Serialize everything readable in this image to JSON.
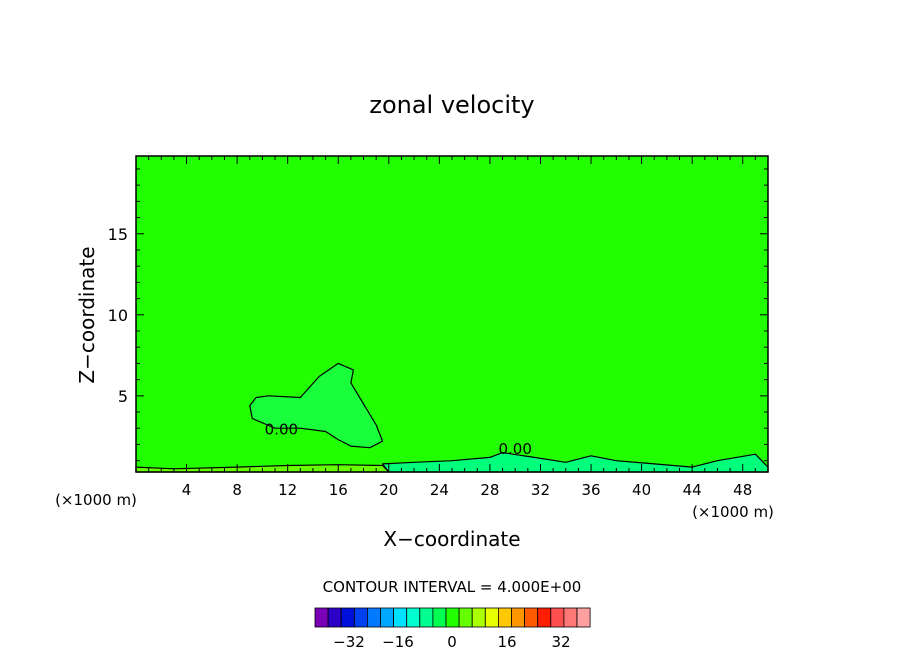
{
  "chart_data": {
    "type": "heatmap",
    "title": "zonal velocity",
    "xlabel": "X−coordinate",
    "ylabel": "Z−coordinate",
    "x_unit_left": "(×1000 m)",
    "x_unit_right": "(×1000 m)",
    "xlim": [
      0,
      50
    ],
    "ylim": [
      0.3,
      19.8
    ],
    "x_ticks": [
      4,
      8,
      12,
      16,
      20,
      24,
      28,
      32,
      36,
      40,
      44,
      48
    ],
    "y_ticks": [
      5,
      10,
      15
    ],
    "background_color": "#22ff00",
    "contour_labels": [
      {
        "text": "0.00",
        "x": 11.5,
        "y": 2.6
      },
      {
        "text": "0.00",
        "x": 30.0,
        "y": 1.4
      }
    ],
    "regions": [
      {
        "name": "low-speed-anomaly",
        "color": "#19ff3c",
        "outline": [
          [
            9.5,
            4.9
          ],
          [
            10.5,
            5.0
          ],
          [
            13.0,
            4.9
          ],
          [
            14.5,
            6.2
          ],
          [
            16.0,
            7.0
          ],
          [
            17.2,
            6.6
          ],
          [
            17.0,
            5.8
          ],
          [
            18.0,
            4.5
          ],
          [
            19.0,
            3.2
          ],
          [
            19.5,
            2.2
          ],
          [
            18.5,
            1.8
          ],
          [
            17.0,
            1.9
          ],
          [
            16.0,
            2.3
          ],
          [
            15.0,
            2.8
          ],
          [
            13.0,
            3.0
          ],
          [
            11.0,
            3.0
          ],
          [
            9.2,
            3.6
          ],
          [
            9.0,
            4.4
          ]
        ]
      },
      {
        "name": "surface-layer",
        "color": "#66ff00",
        "outline": [
          [
            0,
            0.6
          ],
          [
            3.0,
            0.5
          ],
          [
            8.0,
            0.6
          ],
          [
            12.0,
            0.7
          ],
          [
            16.0,
            0.75
          ],
          [
            19.5,
            0.7
          ],
          [
            20.0,
            0.3
          ],
          [
            0,
            0.3
          ]
        ]
      },
      {
        "name": "surface-jet",
        "color": "#00ff7a",
        "outline": [
          [
            19.5,
            0.8
          ],
          [
            22.0,
            0.9
          ],
          [
            25.0,
            1.0
          ],
          [
            28.0,
            1.2
          ],
          [
            29.0,
            1.5
          ],
          [
            31.5,
            1.2
          ],
          [
            34.0,
            0.9
          ],
          [
            36.0,
            1.3
          ],
          [
            38.0,
            1.0
          ],
          [
            41.0,
            0.8
          ],
          [
            44.0,
            0.6
          ],
          [
            46.0,
            1.0
          ],
          [
            49.0,
            1.4
          ],
          [
            50.0,
            0.6
          ],
          [
            50.0,
            0.3
          ],
          [
            20.0,
            0.3
          ]
        ]
      }
    ],
    "colorbar": {
      "title": "CONTOUR INTERVAL = 4.000E+00",
      "colors": [
        "#7a00b8",
        "#2d00c8",
        "#0010dc",
        "#0040f0",
        "#0078ff",
        "#00a8ff",
        "#00e0ff",
        "#00ffd0",
        "#00ff90",
        "#00ff50",
        "#22ff00",
        "#66ff00",
        "#aaff00",
        "#e8ff00",
        "#ffc800",
        "#ff9600",
        "#ff5a00",
        "#ff1e00",
        "#ff5050",
        "#ff7878",
        "#ffa0a0"
      ],
      "tick_labels": [
        "−32",
        "−16",
        "0",
        "16",
        "32"
      ]
    }
  }
}
